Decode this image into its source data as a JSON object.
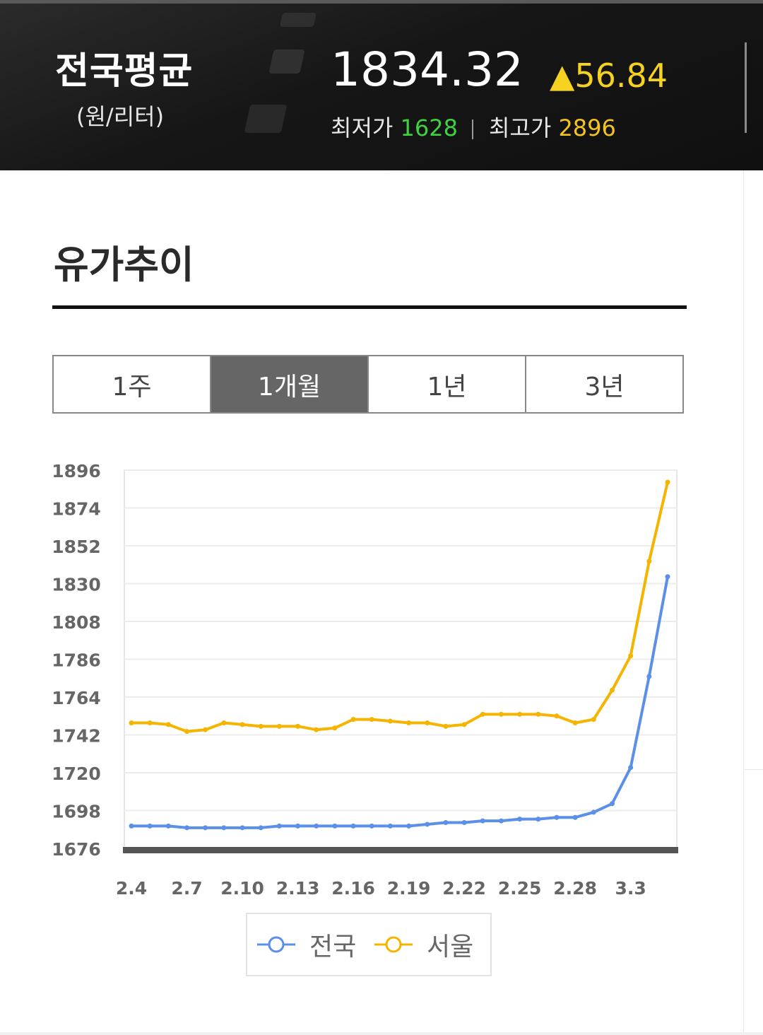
{
  "header": {
    "region": "전국평균",
    "unit": "(원/리터)",
    "avg_price": "1834.32",
    "change": "▲56.84",
    "min_label": "최저가",
    "min_value": "1628",
    "max_label": "최고가",
    "max_value": "2896"
  },
  "section": {
    "title": "유가추이"
  },
  "tabs": [
    {
      "label": "1주",
      "active": false
    },
    {
      "label": "1개월",
      "active": true
    },
    {
      "label": "1년",
      "active": false
    },
    {
      "label": "3년",
      "active": false
    }
  ],
  "colors": {
    "national": "#5b8fe8",
    "seoul": "#f5b400",
    "axis": "#555555",
    "active_tab": "#666666"
  },
  "chart_data": {
    "type": "line",
    "xlabel": "",
    "ylabel": "",
    "ylim": [
      1676,
      1896
    ],
    "yticks": [
      1896,
      1874,
      1852,
      1830,
      1808,
      1786,
      1764,
      1742,
      1720,
      1698,
      1676
    ],
    "x_tick_labels": [
      "2.4",
      "2.7",
      "2.10",
      "2.13",
      "2.16",
      "2.19",
      "2.22",
      "2.25",
      "2.28",
      "3.3"
    ],
    "x": [
      "2.4",
      "2.5",
      "2.6",
      "2.7",
      "2.8",
      "2.9",
      "2.10",
      "2.11",
      "2.12",
      "2.13",
      "2.14",
      "2.15",
      "2.16",
      "2.17",
      "2.18",
      "2.19",
      "2.20",
      "2.21",
      "2.22",
      "2.23",
      "2.24",
      "2.25",
      "2.26",
      "2.27",
      "2.28",
      "3.1",
      "3.2",
      "3.3",
      "3.4",
      "3.5"
    ],
    "series": [
      {
        "name": "전국",
        "color": "#5b8fe8",
        "values": [
          1689,
          1689,
          1689,
          1688,
          1688,
          1688,
          1688,
          1688,
          1689,
          1689,
          1689,
          1689,
          1689,
          1689,
          1689,
          1689,
          1690,
          1691,
          1691,
          1692,
          1692,
          1693,
          1693,
          1694,
          1694,
          1697,
          1702,
          1723,
          1776,
          1834
        ]
      },
      {
        "name": "서울",
        "color": "#f5b400",
        "values": [
          1749,
          1749,
          1748,
          1744,
          1745,
          1749,
          1748,
          1747,
          1747,
          1747,
          1745,
          1746,
          1751,
          1751,
          1750,
          1749,
          1749,
          1747,
          1748,
          1754,
          1754,
          1754,
          1754,
          1753,
          1749,
          1751,
          1768,
          1788,
          1843,
          1889
        ]
      }
    ],
    "legend": "bottom"
  }
}
